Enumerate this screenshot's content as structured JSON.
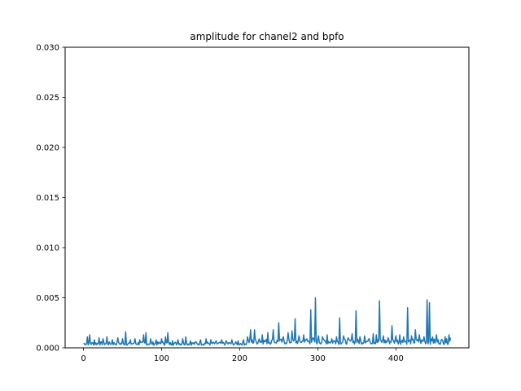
{
  "chart_data": {
    "type": "line",
    "title": "amplitude for chanel2 and bpfo",
    "xlabel": "",
    "ylabel": "",
    "xlim": [
      -23.5,
      493.5
    ],
    "ylim": [
      0,
      0.03
    ],
    "x_ticks": [
      0,
      100,
      200,
      300,
      400
    ],
    "x_tick_labels": [
      "0",
      "100",
      "200",
      "300",
      "400"
    ],
    "y_ticks": [
      0,
      0.005,
      0.01,
      0.015,
      0.02,
      0.025,
      0.03
    ],
    "y_tick_labels": [
      "0.000",
      "0.005",
      "0.010",
      "0.015",
      "0.020",
      "0.025",
      "0.030"
    ],
    "grid": false,
    "legend": false,
    "line_color": "#1f77b4",
    "series": [
      {
        "x_start": 0,
        "x_step": 1,
        "peaks": [
          [
            5,
            0.0011
          ],
          [
            8,
            0.0013
          ],
          [
            14,
            0.0008
          ],
          [
            20,
            0.001
          ],
          [
            25,
            0.0009
          ],
          [
            30,
            0.0011
          ],
          [
            37,
            0.0008
          ],
          [
            44,
            0.001
          ],
          [
            50,
            0.0009
          ],
          [
            54,
            0.0016
          ],
          [
            60,
            0.0008
          ],
          [
            66,
            0.0009
          ],
          [
            72,
            0.0008
          ],
          [
            77,
            0.0013
          ],
          [
            80,
            0.0015
          ],
          [
            86,
            0.0009
          ],
          [
            93,
            0.0008
          ],
          [
            100,
            0.0009
          ],
          [
            105,
            0.0011
          ],
          [
            108,
            0.0015
          ],
          [
            114,
            0.0007
          ],
          [
            121,
            0.0008
          ],
          [
            127,
            0.0009
          ],
          [
            131,
            0.0011
          ],
          [
            137,
            0.0007
          ],
          [
            144,
            0.0006
          ],
          [
            150,
            0.0008
          ],
          [
            157,
            0.0009
          ],
          [
            163,
            0.0008
          ],
          [
            170,
            0.0007
          ],
          [
            177,
            0.0008
          ],
          [
            183,
            0.0007
          ],
          [
            190,
            0.0008
          ],
          [
            198,
            0.0007
          ],
          [
            205,
            0.0008
          ],
          [
            210,
            0.0011
          ],
          [
            214,
            0.0018
          ],
          [
            219,
            0.0018
          ],
          [
            225,
            0.0009
          ],
          [
            229,
            0.0013
          ],
          [
            236,
            0.0015
          ],
          [
            243,
            0.0018
          ],
          [
            250,
            0.0025
          ],
          [
            256,
            0.0011
          ],
          [
            262,
            0.0015
          ],
          [
            267,
            0.0017
          ],
          [
            271,
            0.0029
          ],
          [
            276,
            0.0012
          ],
          [
            282,
            0.0013
          ],
          [
            286,
            0.0009
          ],
          [
            291,
            0.0038
          ],
          [
            294,
            0.001
          ],
          [
            297,
            0.005
          ],
          [
            301,
            0.0012
          ],
          [
            306,
            0.0011
          ],
          [
            312,
            0.0013
          ],
          [
            318,
            0.0009
          ],
          [
            324,
            0.0011
          ],
          [
            328,
            0.003
          ],
          [
            333,
            0.0012
          ],
          [
            339,
            0.001
          ],
          [
            344,
            0.0014
          ],
          [
            349,
            0.0037
          ],
          [
            354,
            0.0011
          ],
          [
            360,
            0.0012
          ],
          [
            366,
            0.0009
          ],
          [
            371,
            0.0014
          ],
          [
            375,
            0.0013
          ],
          [
            379,
            0.0047
          ],
          [
            384,
            0.0012
          ],
          [
            390,
            0.001
          ],
          [
            395,
            0.0022
          ],
          [
            400,
            0.0012
          ],
          [
            405,
            0.0013
          ],
          [
            410,
            0.0011
          ],
          [
            415,
            0.004
          ],
          [
            420,
            0.0012
          ],
          [
            425,
            0.0018
          ],
          [
            430,
            0.0013
          ],
          [
            436,
            0.0011
          ],
          [
            440,
            0.0048
          ],
          [
            443,
            0.0045
          ],
          [
            447,
            0.0011
          ],
          [
            452,
            0.0013
          ],
          [
            458,
            0.0008
          ],
          [
            463,
            0.0011
          ],
          [
            468,
            0.0013
          ],
          [
            470,
            0.001
          ]
        ]
      }
    ]
  }
}
